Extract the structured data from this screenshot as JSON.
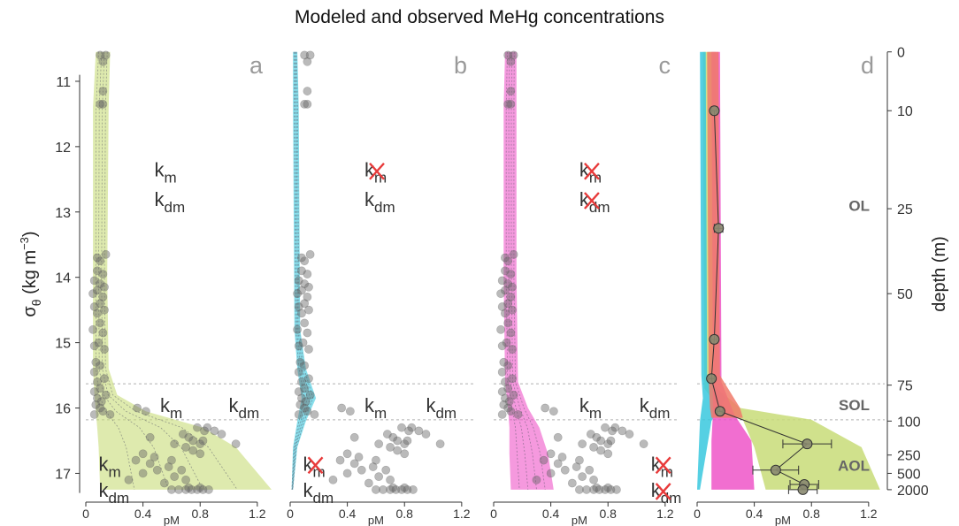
{
  "title": "Modeled and observed MeHg concentrations",
  "left_axis": {
    "label_main": "σ",
    "label_sub": "θ",
    "label_rest": " (kg m",
    "label_sup": "−3",
    "label_close": ")",
    "ticks": [
      11,
      12,
      13,
      14,
      15,
      16,
      17
    ],
    "range": [
      10.5,
      17.4
    ]
  },
  "right_axis": {
    "label": "depth (m)",
    "ticks": [
      {
        "label": "0",
        "sigma": 10.55
      },
      {
        "label": "10",
        "sigma": 11.45
      },
      {
        "label": "25",
        "sigma": 12.95
      },
      {
        "label": "50",
        "sigma": 14.25
      },
      {
        "label": "75",
        "sigma": 15.65
      },
      {
        "label": "100",
        "sigma": 16.2
      },
      {
        "label": "250",
        "sigma": 16.72
      },
      {
        "label": "500",
        "sigma": 17.0
      },
      {
        "label": "2000",
        "sigma": 17.25
      }
    ]
  },
  "layers": {
    "boundaries": [
      15.63,
      16.18
    ],
    "labels": [
      {
        "text": "OL",
        "sigma": 12.9
      },
      {
        "text": "SOL",
        "sigma": 15.95
      },
      {
        "text": "AOL",
        "sigma": 16.88
      }
    ]
  },
  "x_axis": {
    "label": "pM",
    "ticks": [
      "0",
      "0.4",
      "0.8",
      "1.2"
    ],
    "range": [
      0,
      1.3
    ]
  },
  "colors": {
    "green": "#c8dc78",
    "cyan": "#38c8de",
    "pink": "#ee55c8",
    "salmon": "#f07a6a",
    "points": "#666666",
    "letter": "#9a9a9a",
    "cross": "#e83a3a"
  },
  "panels": [
    {
      "letter": "a",
      "band_color": "green",
      "band": [
        [
          10.55,
          0.07,
          0.17
        ],
        [
          11.4,
          0.05,
          0.16
        ],
        [
          14.0,
          0.05,
          0.15
        ],
        [
          15.4,
          0.05,
          0.16
        ],
        [
          15.8,
          0.06,
          0.22
        ],
        [
          16.05,
          0.07,
          0.42
        ],
        [
          16.3,
          0.08,
          0.82
        ],
        [
          16.6,
          0.09,
          1.05
        ],
        [
          17.25,
          0.1,
          1.3
        ]
      ],
      "labels": [
        {
          "main": "k",
          "sub": "m",
          "sigma": 12.35,
          "value": 0.48,
          "cross": false
        },
        {
          "main": "k",
          "sub": "dm",
          "sigma": 12.8,
          "value": 0.48,
          "cross": false
        },
        {
          "main": "k",
          "sub": "m",
          "sigma": 15.95,
          "value": 0.52,
          "cross": false
        },
        {
          "main": "k",
          "sub": "dm",
          "sigma": 15.95,
          "value": 1.0,
          "cross": false
        },
        {
          "main": "k",
          "sub": "m",
          "sigma": 16.85,
          "value": 0.09,
          "cross": false
        },
        {
          "main": "k",
          "sub": "dm",
          "sigma": 17.25,
          "value": 0.09,
          "cross": false
        }
      ]
    },
    {
      "letter": "b",
      "band_color": "cyan",
      "band": [
        [
          10.55,
          0.02,
          0.05
        ],
        [
          11.4,
          0.02,
          0.06
        ],
        [
          14.8,
          0.03,
          0.07
        ],
        [
          15.4,
          0.05,
          0.11
        ],
        [
          15.85,
          0.08,
          0.18
        ],
        [
          16.2,
          0.05,
          0.11
        ],
        [
          16.6,
          0.02,
          0.05
        ],
        [
          17.25,
          0.01,
          0.02
        ]
      ],
      "labels": [
        {
          "main": "k",
          "sub": "m",
          "sigma": 12.35,
          "value": 0.52,
          "cross": true
        },
        {
          "main": "k",
          "sub": "dm",
          "sigma": 12.8,
          "value": 0.52,
          "cross": false
        },
        {
          "main": "k",
          "sub": "m",
          "sigma": 15.95,
          "value": 0.52,
          "cross": false
        },
        {
          "main": "k",
          "sub": "dm",
          "sigma": 15.95,
          "value": 0.95,
          "cross": false
        },
        {
          "main": "k",
          "sub": "m",
          "sigma": 16.85,
          "value": 0.09,
          "cross": true
        },
        {
          "main": "k",
          "sub": "dm",
          "sigma": 17.25,
          "value": 0.09,
          "cross": false
        }
      ]
    },
    {
      "letter": "c",
      "band_color": "pink",
      "band": [
        [
          10.55,
          0.08,
          0.16
        ],
        [
          11.4,
          0.07,
          0.16
        ],
        [
          14.0,
          0.07,
          0.16
        ],
        [
          15.6,
          0.08,
          0.17
        ],
        [
          16.0,
          0.1,
          0.24
        ],
        [
          16.3,
          0.11,
          0.32
        ],
        [
          16.7,
          0.11,
          0.38
        ],
        [
          17.25,
          0.12,
          0.42
        ]
      ],
      "labels": [
        {
          "main": "k",
          "sub": "m",
          "sigma": 12.35,
          "value": 0.6,
          "cross": true
        },
        {
          "main": "k",
          "sub": "dm",
          "sigma": 12.8,
          "value": 0.6,
          "cross": true
        },
        {
          "main": "k",
          "sub": "m",
          "sigma": 15.95,
          "value": 0.6,
          "cross": false
        },
        {
          "main": "k",
          "sub": "dm",
          "sigma": 15.95,
          "value": 1.02,
          "cross": false
        },
        {
          "main": "k",
          "sub": "m",
          "sigma": 16.85,
          "value": 1.1,
          "cross": true
        },
        {
          "main": "k",
          "sub": "dm",
          "sigma": 17.25,
          "value": 1.1,
          "cross": true
        }
      ]
    },
    {
      "letter": "d",
      "band_color": null,
      "labels": []
    }
  ],
  "chart_data": {
    "type": "scatter",
    "title": "Modeled and observed MeHg concentrations",
    "xlabel": "pM",
    "ylabel": "σθ (kg m−3)",
    "y2label": "depth (m)",
    "xlim": [
      0,
      1.3
    ],
    "ylim": [
      10.5,
      17.4
    ],
    "observed_points": [
      [
        0.1,
        10.6
      ],
      [
        0.14,
        10.6
      ],
      [
        0.12,
        10.7
      ],
      [
        0.12,
        11.15
      ],
      [
        0.1,
        11.35
      ],
      [
        0.12,
        11.35
      ],
      [
        0.14,
        13.65
      ],
      [
        0.08,
        13.7
      ],
      [
        0.1,
        13.75
      ],
      [
        0.08,
        13.9
      ],
      [
        0.12,
        13.95
      ],
      [
        0.06,
        14.05
      ],
      [
        0.1,
        14.1
      ],
      [
        0.13,
        14.15
      ],
      [
        0.08,
        14.2
      ],
      [
        0.05,
        14.25
      ],
      [
        0.12,
        14.3
      ],
      [
        0.1,
        14.4
      ],
      [
        0.06,
        14.45
      ],
      [
        0.13,
        14.5
      ],
      [
        0.08,
        14.55
      ],
      [
        0.1,
        14.7
      ],
      [
        0.05,
        14.8
      ],
      [
        0.12,
        14.85
      ],
      [
        0.09,
        15.0
      ],
      [
        0.06,
        15.05
      ],
      [
        0.13,
        15.1
      ],
      [
        0.07,
        15.3
      ],
      [
        0.1,
        15.35
      ],
      [
        0.06,
        15.45
      ],
      [
        0.13,
        15.55
      ],
      [
        0.08,
        15.6
      ],
      [
        0.1,
        15.7
      ],
      [
        0.06,
        15.75
      ],
      [
        0.14,
        15.8
      ],
      [
        0.08,
        15.85
      ],
      [
        0.11,
        15.9
      ],
      [
        0.07,
        15.95
      ],
      [
        0.1,
        16.0
      ],
      [
        0.12,
        16.05
      ],
      [
        0.36,
        16.0
      ],
      [
        0.42,
        16.05
      ],
      [
        0.06,
        16.1
      ],
      [
        0.17,
        16.1
      ],
      [
        0.78,
        16.3
      ],
      [
        0.85,
        16.3
      ],
      [
        0.83,
        16.35
      ],
      [
        0.9,
        16.35
      ],
      [
        0.95,
        16.4
      ],
      [
        0.68,
        16.4
      ],
      [
        0.45,
        16.45
      ],
      [
        0.72,
        16.45
      ],
      [
        0.75,
        16.5
      ],
      [
        0.82,
        16.5
      ],
      [
        0.62,
        16.55
      ],
      [
        0.8,
        16.55
      ],
      [
        1.05,
        16.55
      ],
      [
        0.7,
        16.6
      ],
      [
        0.75,
        16.65
      ],
      [
        0.4,
        16.7
      ],
      [
        0.8,
        16.7
      ],
      [
        0.48,
        16.75
      ],
      [
        0.35,
        16.8
      ],
      [
        0.6,
        16.8
      ],
      [
        0.45,
        16.85
      ],
      [
        0.58,
        16.9
      ],
      [
        0.5,
        16.95
      ],
      [
        0.67,
        16.95
      ],
      [
        0.4,
        17.0
      ],
      [
        0.62,
        17.05
      ],
      [
        0.3,
        17.1
      ],
      [
        0.7,
        17.1
      ],
      [
        0.55,
        17.15
      ],
      [
        0.6,
        17.25
      ],
      [
        0.65,
        17.25
      ],
      [
        0.7,
        17.25
      ],
      [
        0.74,
        17.25
      ],
      [
        0.78,
        17.25
      ],
      [
        0.82,
        17.25
      ],
      [
        0.86,
        17.25
      ],
      [
        0.72,
        17.22
      ],
      [
        0.8,
        17.22
      ]
    ],
    "series": [
      {
        "panel": "d",
        "color": "green",
        "band": [
          [
            10.55,
            0.04,
            0.13
          ],
          [
            15.7,
            0.05,
            0.14
          ],
          [
            16.0,
            0.15,
            0.3
          ],
          [
            16.18,
            0.32,
            0.8
          ],
          [
            16.6,
            0.4,
            1.15
          ],
          [
            17.25,
            0.48,
            1.28
          ]
        ]
      },
      {
        "panel": "d",
        "color": "cyan",
        "band": [
          [
            10.55,
            0.02,
            0.06
          ],
          [
            15.5,
            0.03,
            0.07
          ],
          [
            15.85,
            0.04,
            0.2
          ],
          [
            16.2,
            0.02,
            0.1
          ],
          [
            17.25,
            0.0,
            0.02
          ]
        ]
      },
      {
        "panel": "d",
        "color": "pink",
        "band": [
          [
            10.55,
            0.1,
            0.16
          ],
          [
            15.6,
            0.11,
            0.17
          ],
          [
            16.1,
            0.11,
            0.26
          ],
          [
            16.5,
            0.1,
            0.38
          ],
          [
            17.25,
            0.1,
            0.4
          ]
        ]
      },
      {
        "panel": "d",
        "color": "salmon",
        "band": [
          [
            10.55,
            0.07,
            0.15
          ],
          [
            15.5,
            0.08,
            0.16
          ],
          [
            16.0,
            0.09,
            0.3
          ],
          [
            16.15,
            0.1,
            0.32
          ]
        ]
      }
    ],
    "observed_means": [
      {
        "x": 0.12,
        "y": 11.45,
        "err": 0.02
      },
      {
        "x": 0.15,
        "y": 13.25,
        "err": 0.03
      },
      {
        "x": 0.12,
        "y": 14.95,
        "err": 0.02
      },
      {
        "x": 0.1,
        "y": 15.55,
        "err": 0.02
      },
      {
        "x": 0.16,
        "y": 16.05,
        "err": 0.02
      },
      {
        "x": 0.77,
        "y": 16.55,
        "err": 0.17
      },
      {
        "x": 0.55,
        "y": 16.95,
        "err": 0.16
      },
      {
        "x": 0.75,
        "y": 17.17,
        "err": 0.1
      },
      {
        "x": 0.74,
        "y": 17.25,
        "err": 0.1
      }
    ]
  }
}
